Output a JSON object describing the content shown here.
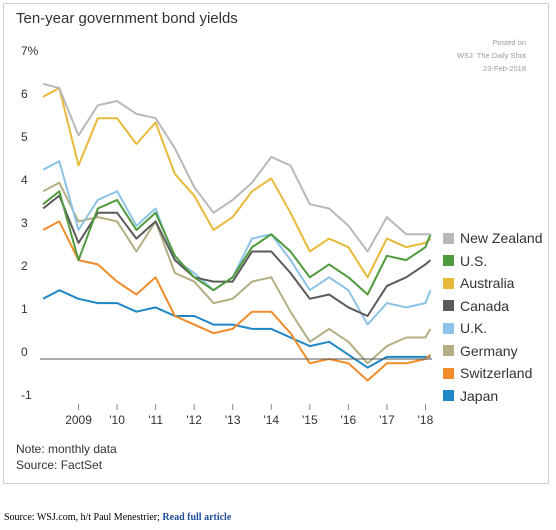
{
  "posted": {
    "line1": "Posted on",
    "line2": "WSJ: The Daily Shot",
    "line3": "23-Feb-2018"
  },
  "notes": {
    "note": "Note: monthly data",
    "source": "Source: FactSet"
  },
  "footer": {
    "source_text": "Source: WSJ.com, h/t Paul Menestrier; ",
    "link_text": "Read full article"
  },
  "chart_data": {
    "type": "line",
    "title": "Ten-year government bond yields",
    "xlabel": "",
    "ylabel": "",
    "xlim": [
      2008.0,
      2018.17
    ],
    "ylim": [
      -1,
      7
    ],
    "y_ticks": [
      "7%",
      "6",
      "5",
      "4",
      "3",
      "2",
      "1",
      "0",
      "-1"
    ],
    "x_ticks": [
      {
        "x": 2009.0,
        "label": "2009"
      },
      {
        "x": 2010.0,
        "label": "'10"
      },
      {
        "x": 2011.0,
        "label": "'11"
      },
      {
        "x": 2012.0,
        "label": "'12"
      },
      {
        "x": 2013.0,
        "label": "'13"
      },
      {
        "x": 2014.0,
        "label": "'14"
      },
      {
        "x": 2015.0,
        "label": "'15"
      },
      {
        "x": 2016.0,
        "label": "'16"
      },
      {
        "x": 2017.0,
        "label": "'17"
      },
      {
        "x": 2018.0,
        "label": "'18"
      }
    ],
    "legend_position": "right",
    "grid": false,
    "x": [
      2008.08,
      2008.5,
      2009.0,
      2009.5,
      2010.0,
      2010.5,
      2011.0,
      2011.5,
      2012.0,
      2012.5,
      2013.0,
      2013.5,
      2014.0,
      2014.5,
      2015.0,
      2015.5,
      2016.0,
      2016.5,
      2017.0,
      2017.5,
      2018.0,
      2018.13
    ],
    "series": [
      {
        "name": "New Zealand",
        "color": "#b8b8b8",
        "values": [
          6.4,
          6.3,
          5.2,
          5.9,
          6.0,
          5.7,
          5.6,
          4.9,
          4.0,
          3.4,
          3.7,
          4.1,
          4.7,
          4.5,
          3.6,
          3.5,
          3.1,
          2.5,
          3.3,
          2.9,
          2.9,
          2.9
        ]
      },
      {
        "name": "U.S.",
        "color": "#4f9a3c",
        "values": [
          3.6,
          3.9,
          2.3,
          3.5,
          3.7,
          3.0,
          3.4,
          2.4,
          1.9,
          1.6,
          1.9,
          2.6,
          2.9,
          2.5,
          1.9,
          2.2,
          1.9,
          1.5,
          2.4,
          2.3,
          2.6,
          2.9
        ]
      },
      {
        "name": "Australia",
        "color": "#e8b93a",
        "values": [
          6.1,
          6.3,
          4.5,
          5.6,
          5.6,
          5.0,
          5.5,
          4.3,
          3.8,
          3.0,
          3.3,
          3.9,
          4.2,
          3.4,
          2.5,
          2.8,
          2.6,
          1.9,
          2.8,
          2.6,
          2.7,
          2.8
        ]
      },
      {
        "name": "Canada",
        "color": "#5a5a5a",
        "values": [
          3.5,
          3.8,
          2.7,
          3.4,
          3.4,
          2.8,
          3.2,
          2.3,
          1.9,
          1.8,
          1.8,
          2.5,
          2.5,
          2.0,
          1.4,
          1.5,
          1.2,
          1.0,
          1.7,
          1.9,
          2.2,
          2.3
        ]
      },
      {
        "name": "U.K.",
        "color": "#8cc3e6",
        "values": [
          4.4,
          4.6,
          3.0,
          3.7,
          3.9,
          3.1,
          3.5,
          2.3,
          2.0,
          1.6,
          1.9,
          2.8,
          2.9,
          2.3,
          1.6,
          1.9,
          1.6,
          0.8,
          1.3,
          1.2,
          1.3,
          1.6
        ]
      },
      {
        "name": "Germany",
        "color": "#b3ae84",
        "values": [
          3.9,
          4.1,
          3.2,
          3.3,
          3.2,
          2.5,
          3.2,
          2.0,
          1.8,
          1.3,
          1.4,
          1.8,
          1.9,
          1.1,
          0.4,
          0.7,
          0.4,
          -0.1,
          0.3,
          0.5,
          0.5,
          0.7
        ]
      },
      {
        "name": "Switzerland",
        "color": "#f08c2a",
        "values": [
          3.0,
          3.2,
          2.3,
          2.2,
          1.8,
          1.5,
          1.9,
          1.0,
          0.8,
          0.6,
          0.7,
          1.1,
          1.1,
          0.6,
          -0.1,
          0.0,
          -0.1,
          -0.5,
          -0.1,
          -0.1,
          0.0,
          0.1
        ]
      },
      {
        "name": "Japan",
        "color": "#1f87c7",
        "values": [
          1.4,
          1.6,
          1.4,
          1.3,
          1.3,
          1.1,
          1.2,
          1.0,
          1.0,
          0.8,
          0.8,
          0.7,
          0.7,
          0.5,
          0.3,
          0.4,
          0.1,
          -0.2,
          0.05,
          0.05,
          0.05,
          0.05
        ]
      }
    ]
  }
}
